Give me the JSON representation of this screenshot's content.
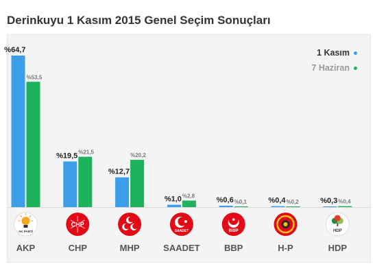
{
  "title": "Derinkuyu 1 Kasım 2015 Genel Seçim Sonuçları",
  "legend": [
    {
      "name": "1 Kasım",
      "color": "#3c9ee8",
      "text_color": "#333333"
    },
    {
      "name": "7 Haziran",
      "color": "#1db35c",
      "text_color": "#999999"
    }
  ],
  "chart_data": {
    "type": "bar",
    "title": "Derinkuyu 1 Kasım 2015 Genel Seçim Sonuçları",
    "xlabel": "",
    "ylabel": "",
    "ylim": [
      0,
      64.7
    ],
    "grid": false,
    "legend_position": "top-right",
    "categories": [
      "AKP",
      "CHP",
      "MHP",
      "SAADET",
      "BBP",
      "H-P",
      "HDP"
    ],
    "series": [
      {
        "name": "1 Kasım",
        "color": "#3c9ee8",
        "values": [
          64.7,
          19.5,
          12.7,
          1.0,
          0.6,
          0.4,
          0.3
        ],
        "labels": [
          "%64,7",
          "%19,5",
          "%12,7",
          "%1,0",
          "%0,6",
          "%0,4",
          "%0,3"
        ]
      },
      {
        "name": "7 Haziran",
        "color": "#1db35c",
        "values": [
          53.5,
          21.5,
          20.2,
          2.8,
          0.1,
          0.2,
          0.4
        ],
        "labels": [
          "%53,5",
          "%21,5",
          "%20,2",
          "%2,8",
          "%0,1",
          "%0,2",
          "%0,4"
        ]
      }
    ]
  },
  "logos": [
    {
      "party": "AKP",
      "icon": "akp-bulb-icon",
      "text": "AK PARTİ",
      "bg": "#ffffff",
      "fg": "#f5a623"
    },
    {
      "party": "CHP",
      "icon": "chp-six-arrows-icon",
      "text": "CHP",
      "bg": "#e30a17",
      "fg": "#ffffff"
    },
    {
      "party": "MHP",
      "icon": "mhp-three-crescents-icon",
      "text": "",
      "bg": "#e30a17",
      "fg": "#ffffff"
    },
    {
      "party": "SAADET",
      "icon": "saadet-crescent-star-icon",
      "text": "SAADET",
      "bg": "#e30a17",
      "fg": "#ffffff"
    },
    {
      "party": "BBP",
      "icon": "bbp-crescent-icon",
      "text": "BBP",
      "bg": "#e30a17",
      "fg": "#ffffff"
    },
    {
      "party": "H-P",
      "icon": "hp-emblem-icon",
      "text": "",
      "bg": "#e30a17",
      "fg": "#f5c518"
    },
    {
      "party": "HDP",
      "icon": "hdp-tree-icon",
      "text": "HDP",
      "bg": "#ffffff",
      "fg": "#2e8b3a"
    }
  ]
}
